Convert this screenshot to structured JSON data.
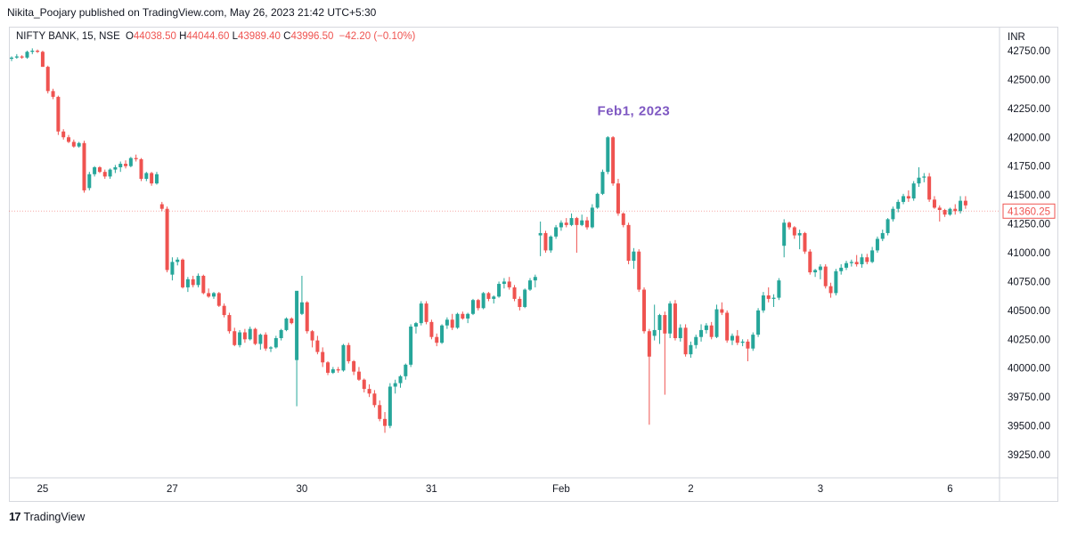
{
  "publish": {
    "text": "Nikita_Poojary published on TradingView.com, May 26, 2023 21:42 UTC+5:30"
  },
  "legend": {
    "symbol": "NIFTY BANK, 15, NSE",
    "o_label": "O",
    "o_value": "44038.50",
    "h_label": "H",
    "h_value": "44044.60",
    "l_label": "L",
    "l_value": "43989.40",
    "c_label": "C",
    "c_value": "43996.50",
    "change": "−42.20 (−0.10%)"
  },
  "footer": {
    "logo_glyph": "17",
    "brand": "TradingView"
  },
  "colors": {
    "up": "#26a69a",
    "down": "#ef5350",
    "annotation": "#7e57c2",
    "axis_text": "#131722",
    "grid": "#e0e3eb"
  },
  "chart_data": {
    "type": "candlestick",
    "currency_label": "INR",
    "ylim": [
      39050,
      42950
    ],
    "y_ticks": [
      "42750.00",
      "42500.00",
      "42250.00",
      "42000.00",
      "41750.00",
      "41500.00",
      "41250.00",
      "41000.00",
      "40750.00",
      "40500.00",
      "40250.00",
      "40000.00",
      "39750.00",
      "39500.00",
      "39250.00"
    ],
    "x_ticks": [
      {
        "label": "25",
        "bar": 6
      },
      {
        "label": "27",
        "bar": 31
      },
      {
        "label": "30",
        "bar": 56
      },
      {
        "label": "31",
        "bar": 81
      },
      {
        "label": "Feb",
        "bar": 106
      },
      {
        "label": "2",
        "bar": 131
      },
      {
        "label": "3",
        "bar": 156
      },
      {
        "label": "6",
        "bar": 181
      }
    ],
    "last_price": "41360.25",
    "annotation": {
      "text": "Feb1, 2023",
      "bar": 120,
      "price": 42190
    },
    "candles": [
      [
        42680,
        42700,
        42660,
        42690
      ],
      [
        42690,
        42720,
        42680,
        42700
      ],
      [
        42700,
        42710,
        42680,
        42690
      ],
      [
        42690,
        42750,
        42680,
        42740
      ],
      [
        42740,
        42770,
        42720,
        42750
      ],
      [
        42750,
        42760,
        42730,
        42740
      ],
      [
        42740,
        42750,
        42610,
        42610
      ],
      [
        42610,
        42620,
        42380,
        42400
      ],
      [
        42400,
        42420,
        42330,
        42350
      ],
      [
        42350,
        42360,
        42020,
        42050
      ],
      [
        42050,
        42070,
        41980,
        42000
      ],
      [
        42000,
        42020,
        41950,
        41960
      ],
      [
        41960,
        41980,
        41910,
        41920
      ],
      [
        41920,
        41960,
        41910,
        41950
      ],
      [
        41950,
        41970,
        41520,
        41540
      ],
      [
        41560,
        41700,
        41540,
        41680
      ],
      [
        41680,
        41750,
        41660,
        41740
      ],
      [
        41740,
        41750,
        41690,
        41700
      ],
      [
        41700,
        41720,
        41640,
        41660
      ],
      [
        41660,
        41730,
        41640,
        41720
      ],
      [
        41720,
        41760,
        41690,
        41740
      ],
      [
        41740,
        41790,
        41700,
        41770
      ],
      [
        41770,
        41800,
        41730,
        41750
      ],
      [
        41750,
        41830,
        41740,
        41820
      ],
      [
        41820,
        41850,
        41790,
        41810
      ],
      [
        41810,
        41820,
        41620,
        41640
      ],
      [
        41640,
        41700,
        41620,
        41690
      ],
      [
        41690,
        41700,
        41580,
        41600
      ],
      [
        41600,
        41700,
        41590,
        41680
      ],
      [
        41420,
        41440,
        41360,
        41380
      ],
      [
        41380,
        41400,
        40830,
        40850
      ],
      [
        40810,
        40960,
        40760,
        40920
      ],
      [
        40920,
        40960,
        40890,
        40940
      ],
      [
        40940,
        40950,
        40690,
        40700
      ],
      [
        40700,
        40790,
        40660,
        40770
      ],
      [
        40770,
        40800,
        40700,
        40720
      ],
      [
        40720,
        40820,
        40700,
        40800
      ],
      [
        40800,
        40810,
        40640,
        40650
      ],
      [
        40650,
        40690,
        40610,
        40620
      ],
      [
        40620,
        40660,
        40600,
        40650
      ],
      [
        40650,
        40660,
        40530,
        40540
      ],
      [
        40540,
        40560,
        40440,
        40460
      ],
      [
        40460,
        40480,
        40300,
        40320
      ],
      [
        40320,
        40350,
        40190,
        40200
      ],
      [
        40200,
        40330,
        40180,
        40310
      ],
      [
        40310,
        40340,
        40220,
        40250
      ],
      [
        40250,
        40360,
        40240,
        40340
      ],
      [
        40340,
        40350,
        40200,
        40210
      ],
      [
        40210,
        40300,
        40160,
        40290
      ],
      [
        40290,
        40310,
        40150,
        40170
      ],
      [
        40170,
        40190,
        40140,
        40180
      ],
      [
        40180,
        40280,
        40170,
        40260
      ],
      [
        40260,
        40340,
        40240,
        40330
      ],
      [
        40330,
        40440,
        40320,
        40430
      ],
      [
        40430,
        40440,
        40380,
        40390
      ],
      [
        40070,
        40640,
        39670,
        40670
      ],
      [
        40470,
        40800,
        40460,
        40570
      ],
      [
        40570,
        40580,
        40300,
        40320
      ],
      [
        40320,
        40330,
        40180,
        40240
      ],
      [
        40240,
        40280,
        40120,
        40140
      ],
      [
        40140,
        40180,
        40010,
        40050
      ],
      [
        40050,
        40060,
        39940,
        39960
      ],
      [
        39960,
        40010,
        39950,
        39990
      ],
      [
        39990,
        40010,
        39960,
        39980
      ],
      [
        39980,
        40210,
        39970,
        40200
      ],
      [
        40200,
        40220,
        40040,
        40060
      ],
      [
        40060,
        40070,
        39940,
        39970
      ],
      [
        39970,
        40010,
        39890,
        39900
      ],
      [
        39900,
        39910,
        39790,
        39820
      ],
      [
        39820,
        39860,
        39750,
        39780
      ],
      [
        39780,
        39810,
        39660,
        39680
      ],
      [
        39680,
        39720,
        39540,
        39560
      ],
      [
        39560,
        39620,
        39440,
        39500
      ],
      [
        39500,
        39870,
        39480,
        39840
      ],
      [
        39840,
        39900,
        39780,
        39870
      ],
      [
        39870,
        39940,
        39830,
        39930
      ],
      [
        39930,
        40040,
        39900,
        40030
      ],
      [
        40030,
        40380,
        40010,
        40360
      ],
      [
        40360,
        40400,
        40300,
        40390
      ],
      [
        40390,
        40580,
        40370,
        40560
      ],
      [
        40560,
        40580,
        40380,
        40400
      ],
      [
        40400,
        40420,
        40250,
        40270
      ],
      [
        40270,
        40300,
        40190,
        40220
      ],
      [
        40220,
        40380,
        40210,
        40370
      ],
      [
        40370,
        40440,
        40340,
        40420
      ],
      [
        40420,
        40470,
        40330,
        40350
      ],
      [
        40350,
        40480,
        40340,
        40470
      ],
      [
        40470,
        40490,
        40420,
        40430
      ],
      [
        40430,
        40480,
        40390,
        40470
      ],
      [
        40470,
        40600,
        40460,
        40590
      ],
      [
        40590,
        40600,
        40500,
        40520
      ],
      [
        40520,
        40660,
        40510,
        40650
      ],
      [
        40650,
        40660,
        40580,
        40600
      ],
      [
        40600,
        40630,
        40560,
        40620
      ],
      [
        40620,
        40750,
        40610,
        40730
      ],
      [
        40730,
        40780,
        40690,
        40750
      ],
      [
        40750,
        40790,
        40680,
        40700
      ],
      [
        40700,
        40720,
        40580,
        40600
      ],
      [
        40600,
        40620,
        40500,
        40530
      ],
      [
        40530,
        40690,
        40520,
        40680
      ],
      [
        40680,
        40780,
        40670,
        40760
      ],
      [
        40760,
        40810,
        40700,
        40790
      ],
      [
        41150,
        41270,
        40970,
        41170
      ],
      [
        41170,
        41190,
        41000,
        41020
      ],
      [
        41020,
        41150,
        41000,
        41140
      ],
      [
        41140,
        41240,
        41120,
        41220
      ],
      [
        41220,
        41280,
        41190,
        41260
      ],
      [
        41260,
        41300,
        41220,
        41240
      ],
      [
        41240,
        41340,
        41230,
        41300
      ],
      [
        41300,
        41310,
        41000,
        41240
      ],
      [
        41240,
        41330,
        41230,
        41280
      ],
      [
        41280,
        41310,
        41200,
        41220
      ],
      [
        41220,
        41420,
        41210,
        41390
      ],
      [
        41390,
        41520,
        41380,
        41510
      ],
      [
        41510,
        41720,
        41500,
        41700
      ],
      [
        41700,
        42010,
        41680,
        42000
      ],
      [
        42000,
        42010,
        41580,
        41600
      ],
      [
        41600,
        41640,
        41320,
        41340
      ],
      [
        41340,
        41350,
        41220,
        41240
      ],
      [
        41240,
        41260,
        40900,
        40930
      ],
      [
        40930,
        41040,
        40860,
        41010
      ],
      [
        41010,
        41030,
        40660,
        40680
      ],
      [
        40680,
        40700,
        40300,
        40320
      ],
      [
        40320,
        40340,
        39510,
        40100
      ],
      [
        40280,
        40550,
        40240,
        40330
      ],
      [
        40330,
        40470,
        40210,
        40460
      ],
      [
        40460,
        40490,
        39770,
        40300
      ],
      [
        40300,
        40580,
        40260,
        40560
      ],
      [
        40560,
        40590,
        40240,
        40260
      ],
      [
        40260,
        40380,
        40230,
        40350
      ],
      [
        40350,
        40380,
        40100,
        40120
      ],
      [
        40120,
        40230,
        40090,
        40200
      ],
      [
        40200,
        40290,
        40170,
        40270
      ],
      [
        40270,
        40380,
        40230,
        40330
      ],
      [
        40330,
        40390,
        40300,
        40370
      ],
      [
        40370,
        40400,
        40250,
        40270
      ],
      [
        40270,
        40550,
        40260,
        40510
      ],
      [
        40510,
        40570,
        40460,
        40480
      ],
      [
        40480,
        40500,
        40220,
        40240
      ],
      [
        40240,
        40300,
        40200,
        40280
      ],
      [
        40280,
        40330,
        40200,
        40220
      ],
      [
        40220,
        40250,
        40190,
        40230
      ],
      [
        40230,
        40250,
        40060,
        40170
      ],
      [
        40170,
        40310,
        40150,
        40290
      ],
      [
        40290,
        40520,
        40270,
        40500
      ],
      [
        40500,
        40660,
        40480,
        40630
      ],
      [
        40630,
        40700,
        40570,
        40600
      ],
      [
        40600,
        40640,
        40530,
        40610
      ],
      [
        40610,
        40780,
        40590,
        40760
      ],
      [
        41060,
        41290,
        40960,
        41260
      ],
      [
        41260,
        41270,
        41200,
        41220
      ],
      [
        41220,
        41230,
        41120,
        41150
      ],
      [
        41150,
        41200,
        41030,
        41170
      ],
      [
        41170,
        41180,
        40990,
        41010
      ],
      [
        41010,
        41030,
        40810,
        40830
      ],
      [
        40830,
        40860,
        40790,
        40850
      ],
      [
        40850,
        40900,
        40770,
        40880
      ],
      [
        40880,
        40900,
        40690,
        40710
      ],
      [
        40710,
        40740,
        40610,
        40650
      ],
      [
        40650,
        40860,
        40630,
        40840
      ],
      [
        40840,
        40900,
        40810,
        40870
      ],
      [
        40870,
        40930,
        40850,
        40910
      ],
      [
        40910,
        40940,
        40880,
        40920
      ],
      [
        40920,
        40980,
        40880,
        40900
      ],
      [
        40900,
        40990,
        40870,
        40960
      ],
      [
        40960,
        40990,
        40900,
        40920
      ],
      [
        40920,
        41050,
        40910,
        41020
      ],
      [
        41020,
        41140,
        41000,
        41120
      ],
      [
        41120,
        41200,
        41100,
        41170
      ],
      [
        41170,
        41300,
        41150,
        41290
      ],
      [
        41290,
        41400,
        41270,
        41380
      ],
      [
        41380,
        41460,
        41350,
        41440
      ],
      [
        41440,
        41510,
        41420,
        41490
      ],
      [
        41490,
        41540,
        41440,
        41470
      ],
      [
        41470,
        41620,
        41450,
        41600
      ],
      [
        41600,
        41740,
        41570,
        41650
      ],
      [
        41650,
        41690,
        41610,
        41660
      ],
      [
        41660,
        41690,
        41440,
        41460
      ],
      [
        41460,
        41490,
        41380,
        41390
      ],
      [
        41390,
        41410,
        41270,
        41370
      ],
      [
        41370,
        41380,
        41310,
        41330
      ],
      [
        41330,
        41390,
        41320,
        41380
      ],
      [
        41380,
        41420,
        41330,
        41360
      ],
      [
        41360,
        41490,
        41340,
        41450
      ],
      [
        41450,
        41490,
        41380,
        41410
      ]
    ]
  }
}
